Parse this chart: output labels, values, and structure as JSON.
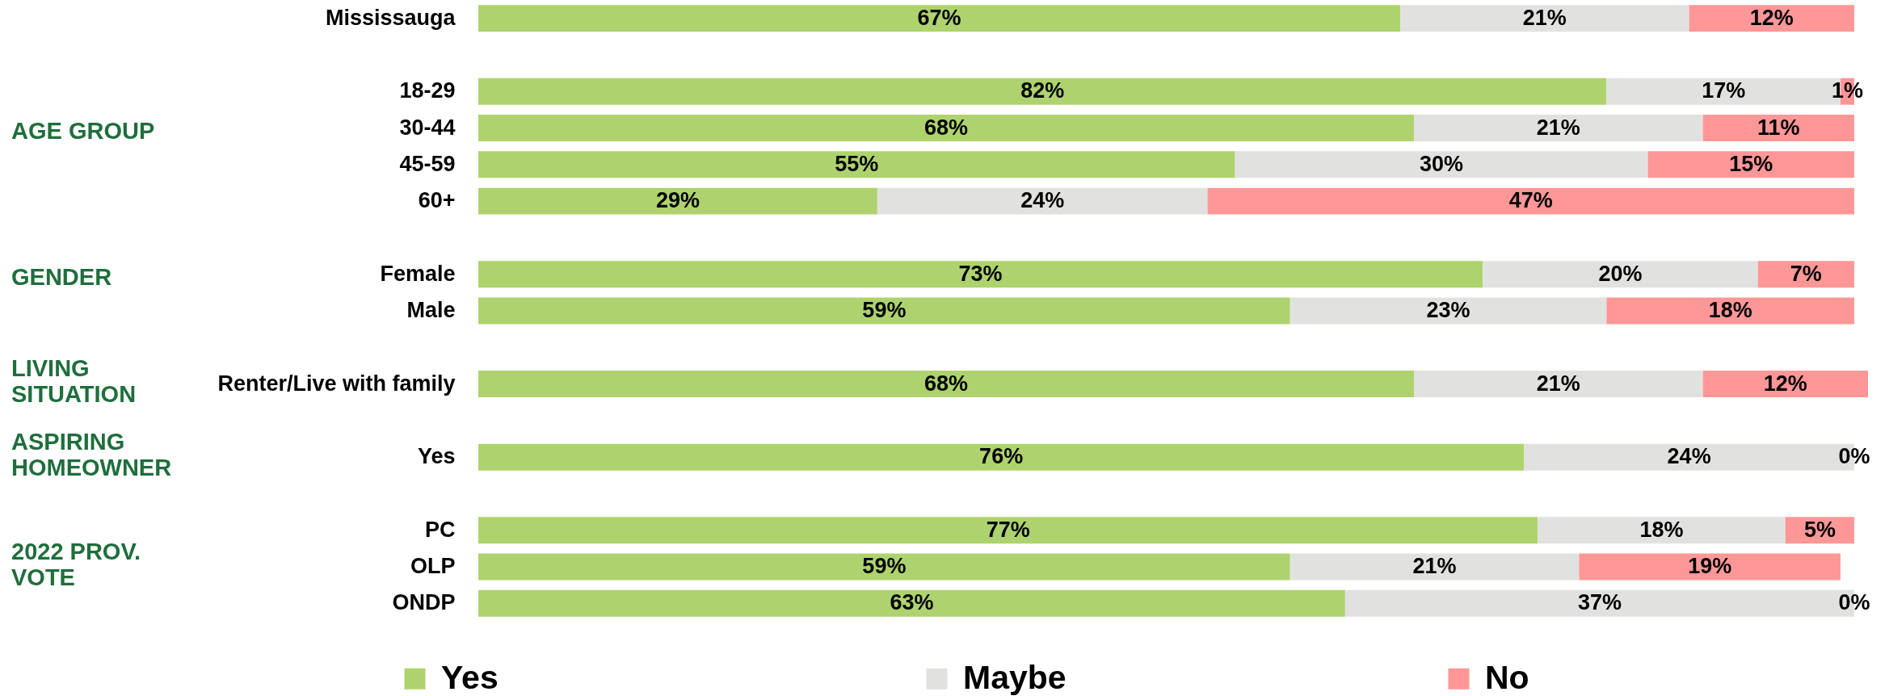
{
  "chart_data": {
    "type": "bar",
    "orientation": "horizontal",
    "stacked": true,
    "categories": [
      "Mississauga",
      null,
      "18-29",
      "30-44",
      "45-59",
      "60+",
      null,
      "Female",
      "Male",
      null,
      "Renter/Live with family",
      null,
      "Yes",
      null,
      "PC",
      "OLP",
      "ONDP"
    ],
    "series": [
      {
        "name": "Yes",
        "color": "#aed36e",
        "values": [
          67,
          null,
          82,
          68,
          55,
          29,
          null,
          73,
          59,
          null,
          68,
          null,
          76,
          null,
          77,
          59,
          63
        ],
        "value_labels": [
          "67%",
          null,
          "82%",
          "68%",
          "55%",
          "29%",
          null,
          "73%",
          "59%",
          null,
          "68%",
          null,
          "76%",
          null,
          "77%",
          "59%",
          "63%"
        ]
      },
      {
        "name": "Maybe",
        "color": "#e1e2df",
        "values": [
          21,
          null,
          17,
          21,
          30,
          24,
          null,
          20,
          23,
          null,
          21,
          null,
          24,
          null,
          18,
          21,
          37
        ],
        "value_labels": [
          "21%",
          null,
          "17%",
          "21%",
          "30%",
          "24%",
          null,
          "20%",
          "23%",
          null,
          "21%",
          null,
          "24%",
          null,
          "18%",
          "21%",
          "37%"
        ]
      },
      {
        "name": "No",
        "color": "#ff9797",
        "values": [
          12,
          null,
          1,
          11,
          15,
          47,
          null,
          7,
          18,
          null,
          12,
          null,
          0,
          null,
          5,
          19,
          0
        ],
        "value_labels": [
          "12%",
          null,
          "1%",
          "11%",
          "15%",
          "47%",
          null,
          "7%",
          "18%",
          null,
          "12%",
          null,
          "0%",
          null,
          "5%",
          "19%",
          "0%"
        ]
      }
    ],
    "xlim": [
      0,
      101
    ],
    "tick_labels": "y",
    "legend": "bottom",
    "annotations": [
      "AGE GROUP",
      "GENDER",
      "LIVING SITUATION",
      "ASPIRING HOMEOWNER",
      "2022 PROV. VOTE"
    ]
  }
}
